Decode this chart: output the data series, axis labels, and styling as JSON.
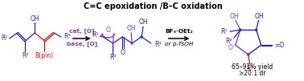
{
  "title": "C=C epoxidation /B–C oxidation",
  "title_color": "#000000",
  "title_fontsize": 7.0,
  "bg_color": "#ffffff",
  "blue": "#2222bb",
  "red": "#cc1111",
  "purple": "#9933aa",
  "black": "#000000",
  "arrow1_top": "cat, [O]",
  "arrow1_bot": "base, [O]",
  "arrow2_top": "BF₃·OEt₂",
  "arrow2_bot": "or p-TsOH",
  "yield_text": "65–91% yield",
  "dr_text": ">20:1 dr"
}
